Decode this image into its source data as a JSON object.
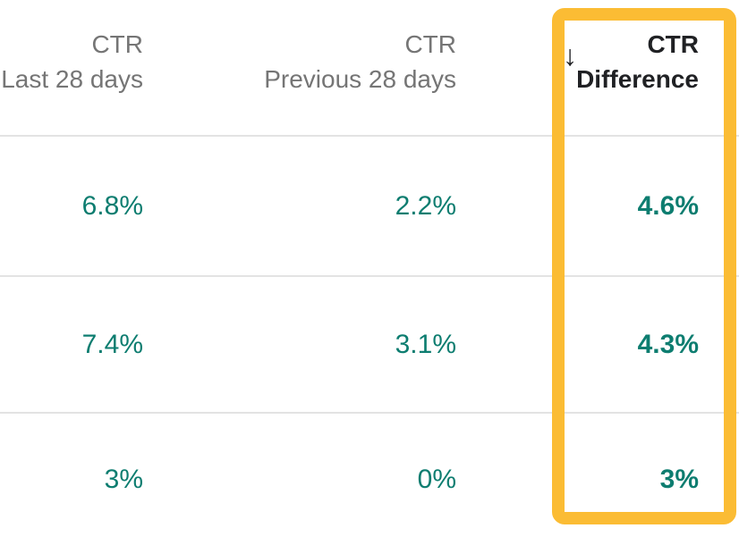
{
  "table": {
    "sort_icon": "↓",
    "columns": [
      {
        "line1": "CTR",
        "line2": "Last 28 days",
        "sorted": false
      },
      {
        "line1": "CTR",
        "line2": "Previous 28 days",
        "sorted": false
      },
      {
        "line1": "CTR",
        "line2": "Difference",
        "sorted": true,
        "sort_direction": "descending"
      }
    ],
    "rows": [
      [
        "6.8%",
        "2.2%",
        "4.6%"
      ],
      [
        "7.4%",
        "3.1%",
        "4.3%"
      ],
      [
        "3%",
        "0%",
        "3%"
      ]
    ]
  },
  "colors": {
    "value_teal": "#0D7D70",
    "header_gray": "#757575",
    "header_dark": "#202124",
    "divider": "#E3E3E3",
    "highlight_orange": "#FBBC34"
  }
}
